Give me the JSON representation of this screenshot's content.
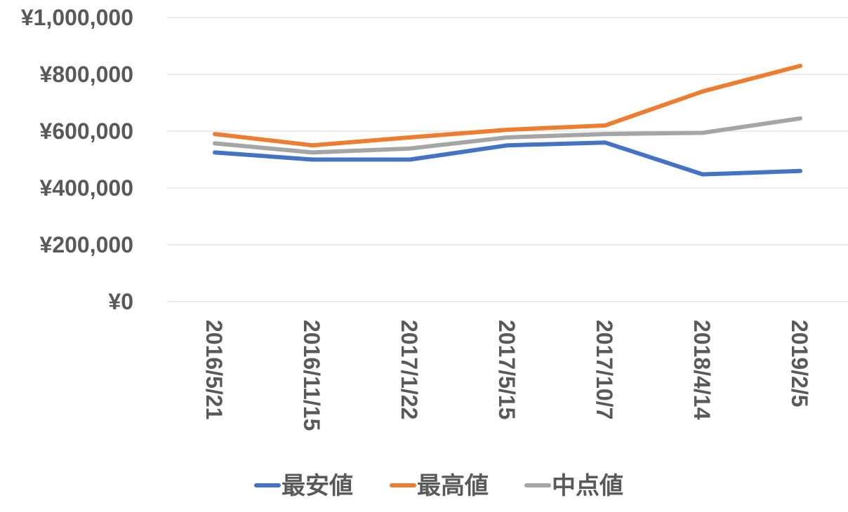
{
  "chart_data": {
    "type": "line",
    "title": "",
    "xlabel": "",
    "ylabel": "",
    "x": [
      "2016/5/21",
      "2016/11/15",
      "2017/1/22",
      "2017/5/15",
      "2017/10/7",
      "2018/4/14",
      "2019/2/5"
    ],
    "y_ticks": [
      "¥0",
      "¥200,000",
      "¥400,000",
      "¥600,000",
      "¥800,000",
      "¥1,000,000"
    ],
    "ylim": [
      0,
      1000000
    ],
    "grid": true,
    "legend_position": "bottom",
    "series": [
      {
        "name": "最安値",
        "color": "#4472C4",
        "values": [
          525000,
          500000,
          500000,
          550000,
          560000,
          448000,
          460000
        ]
      },
      {
        "name": "最高値",
        "color": "#ED7D31",
        "values": [
          590000,
          550000,
          578000,
          605000,
          620000,
          740000,
          830000
        ]
      },
      {
        "name": "中点値",
        "color": "#A5A5A5",
        "values": [
          557000,
          525000,
          539000,
          578000,
          590000,
          594000,
          645000
        ]
      }
    ]
  }
}
